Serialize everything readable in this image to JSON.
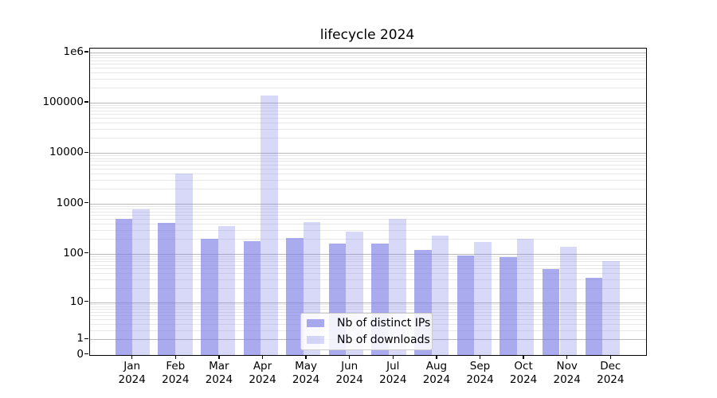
{
  "title": "lifecycle 2024",
  "chart_data": {
    "type": "bar",
    "title": "lifecycle 2024",
    "categories": [
      "Jan\n2024",
      "Feb\n2024",
      "Mar\n2024",
      "Apr\n2024",
      "May\n2024",
      "Jun\n2024",
      "Jul\n2024",
      "Aug\n2024",
      "Sep\n2024",
      "Oct\n2024",
      "Nov\n2024",
      "Dec\n2024"
    ],
    "series": [
      {
        "name": "Nb of distinct IPs",
        "color": "rgba(125,125,231,0.65)",
        "values": [
          500,
          410,
          200,
          180,
          205,
          160,
          160,
          120,
          93,
          84,
          50,
          33
        ]
      },
      {
        "name": "Nb of downloads",
        "color": "rgba(125,125,231,0.30)",
        "values": [
          780,
          3900,
          360,
          140000,
          430,
          280,
          490,
          230,
          170,
          200,
          140,
          70
        ]
      }
    ],
    "yscale": "log10(1+y)",
    "ylim": [
      0,
      1200000
    ],
    "ytick_labels": [
      "0",
      "1",
      "10",
      "100",
      "1000",
      "10000",
      "100000",
      "1e6"
    ],
    "ytick_values": [
      0,
      1,
      10,
      100,
      1000,
      10000,
      100000,
      1000000
    ],
    "grid": "horizontal, major and minor, no vertical",
    "legend_position": "lower center",
    "colors": {
      "grid_major": "#b9b9b9",
      "grid_minor": "#e8e8e8",
      "spine": "#000000",
      "background": "#ffffff"
    }
  },
  "legend": {
    "item1": "Nb of distinct IPs",
    "item2": "Nb of downloads"
  }
}
